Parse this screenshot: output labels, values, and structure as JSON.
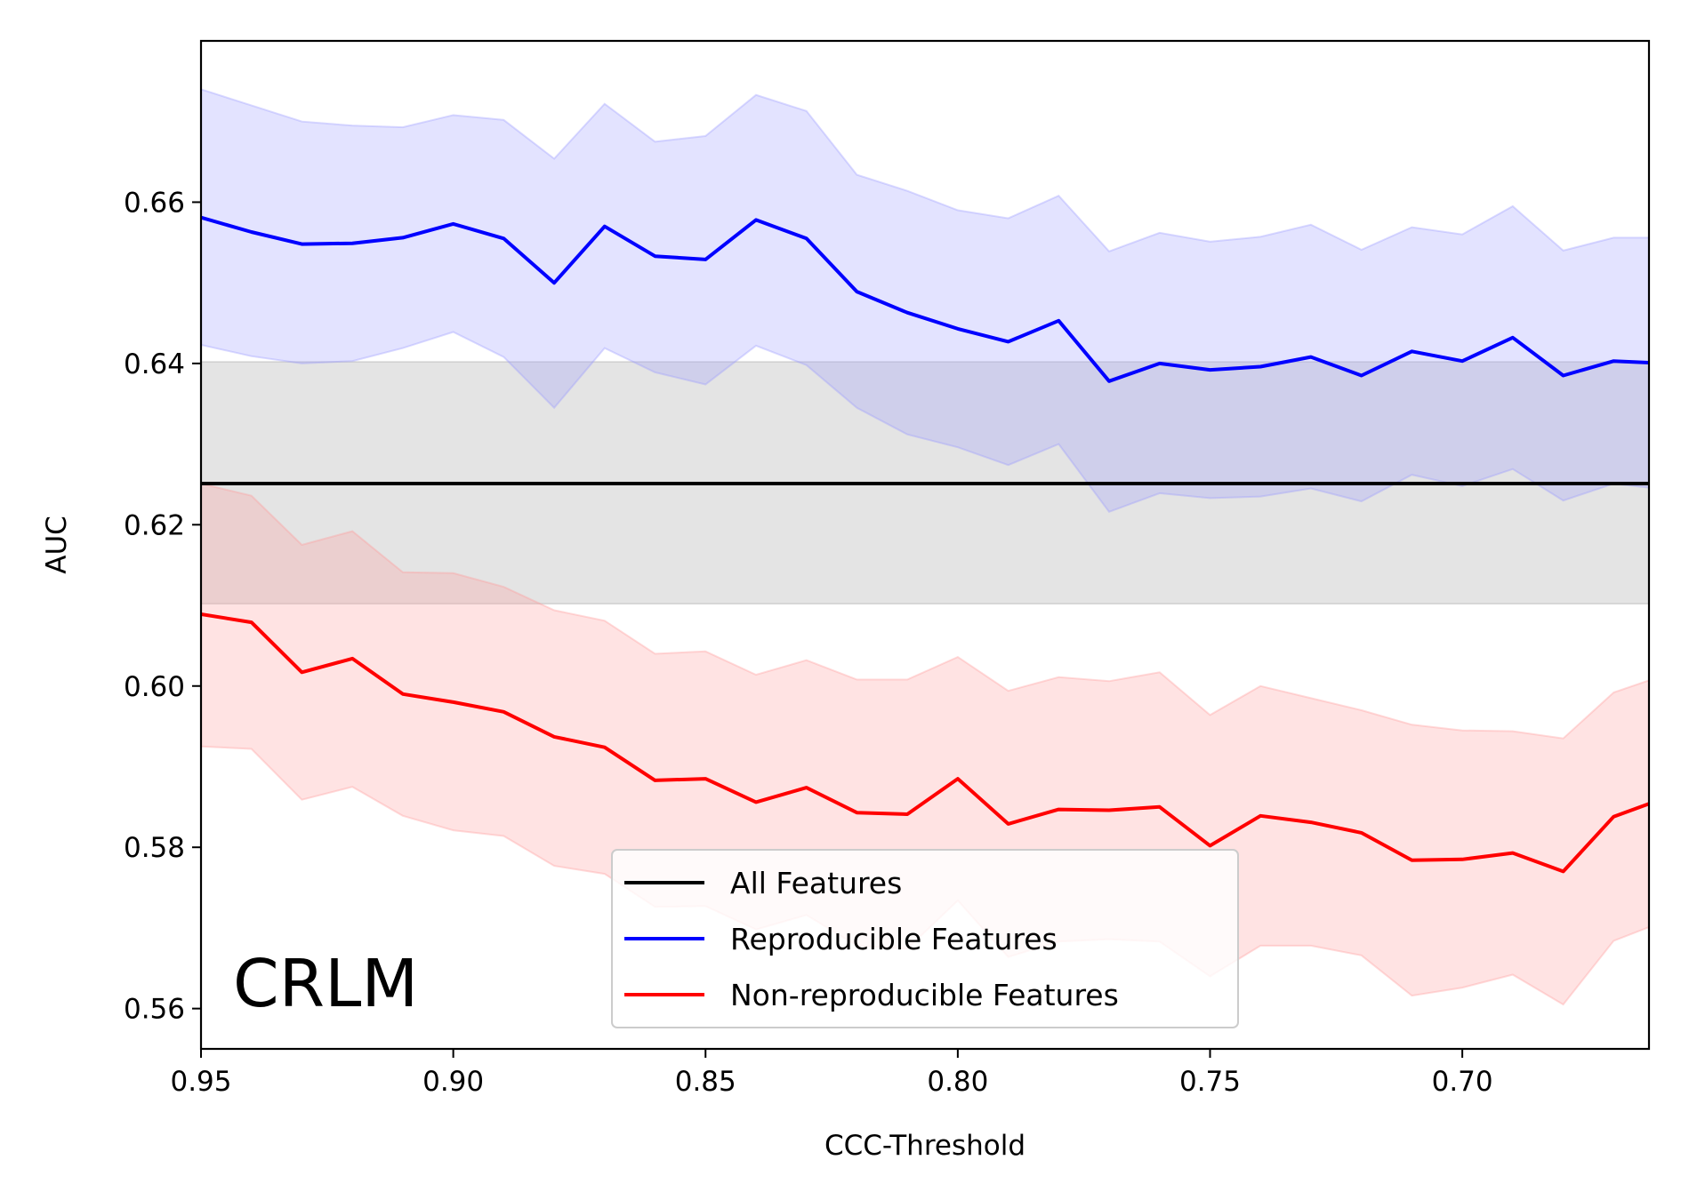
{
  "chart_data": {
    "type": "line",
    "title": "",
    "xlabel": "CCC-Threshold",
    "ylabel": "AUC",
    "annotation": "CRLM",
    "x_inverted": true,
    "xlim": [
      0.95,
      0.663
    ],
    "ylim": [
      0.555,
      0.68
    ],
    "grid": false,
    "legend_position": "lower center",
    "x_ticks": [
      "0.95",
      "0.90",
      "0.85",
      "0.80",
      "0.75",
      "0.70"
    ],
    "y_ticks": [
      "0.56",
      "0.58",
      "0.60",
      "0.62",
      "0.64",
      "0.66"
    ],
    "x": [
      0.95,
      0.94,
      0.93,
      0.92,
      0.91,
      0.9,
      0.89,
      0.88,
      0.87,
      0.86,
      0.85,
      0.84,
      0.83,
      0.82,
      0.81,
      0.8,
      0.79,
      0.78,
      0.77,
      0.76,
      0.75,
      0.74,
      0.73,
      0.72,
      0.71,
      0.7,
      0.69,
      0.68,
      0.67,
      0.663
    ],
    "all_features": {
      "name": "All Features",
      "color": "#000000",
      "value": 0.6251,
      "band": [
        0.6102,
        0.6402
      ],
      "band_color": "#b3b3b3"
    },
    "series": [
      {
        "name": "Reproducible Features",
        "color": "#0000ff",
        "band_color": "#9999ff",
        "values": [
          0.6581,
          0.6563,
          0.6548,
          0.6549,
          0.6556,
          0.6573,
          0.6555,
          0.65,
          0.657,
          0.6533,
          0.6529,
          0.6578,
          0.6555,
          0.6489,
          0.6463,
          0.6443,
          0.6427,
          0.6453,
          0.6378,
          0.64,
          0.6392,
          0.6396,
          0.6408,
          0.6385,
          0.6415,
          0.6403,
          0.6432,
          0.6385,
          0.6403,
          0.6401
        ],
        "upper": [
          0.674,
          0.672,
          0.67,
          0.6695,
          0.6693,
          0.6708,
          0.6702,
          0.6654,
          0.6722,
          0.6675,
          0.6682,
          0.6733,
          0.6713,
          0.6634,
          0.6614,
          0.659,
          0.658,
          0.6608,
          0.6539,
          0.6562,
          0.6551,
          0.6557,
          0.6572,
          0.6541,
          0.6569,
          0.656,
          0.6595,
          0.654,
          0.6556,
          0.6556
        ],
        "lower": [
          0.6423,
          0.6409,
          0.64,
          0.6403,
          0.6419,
          0.6439,
          0.6408,
          0.6345,
          0.6419,
          0.6389,
          0.6374,
          0.6422,
          0.6398,
          0.6345,
          0.6312,
          0.6296,
          0.6274,
          0.63,
          0.6216,
          0.6239,
          0.6233,
          0.6235,
          0.6245,
          0.6229,
          0.6262,
          0.6248,
          0.6269,
          0.623,
          0.6251,
          0.6246
        ]
      },
      {
        "name": "Non-reproducible Features",
        "color": "#ff0000",
        "band_color": "#ff9999",
        "values": [
          0.6089,
          0.6079,
          0.6017,
          0.6034,
          0.599,
          0.598,
          0.5968,
          0.5937,
          0.5924,
          0.5883,
          0.5885,
          0.5856,
          0.5874,
          0.5843,
          0.5841,
          0.5885,
          0.5829,
          0.5847,
          0.5846,
          0.585,
          0.5802,
          0.5839,
          0.5831,
          0.5818,
          0.5784,
          0.5785,
          0.5793,
          0.577,
          0.5838,
          0.5854
        ],
        "upper": [
          0.6251,
          0.6236,
          0.6175,
          0.6192,
          0.6141,
          0.614,
          0.6123,
          0.6094,
          0.6081,
          0.604,
          0.6043,
          0.6014,
          0.6032,
          0.6008,
          0.6008,
          0.6036,
          0.5994,
          0.6011,
          0.6006,
          0.6017,
          0.5964,
          0.6,
          0.5985,
          0.597,
          0.5952,
          0.5945,
          0.5944,
          0.5935,
          0.5992,
          0.6007
        ],
        "lower": [
          0.5925,
          0.5922,
          0.5859,
          0.5875,
          0.5839,
          0.5821,
          0.5814,
          0.5777,
          0.5767,
          0.5726,
          0.5727,
          0.5698,
          0.5716,
          0.5678,
          0.5674,
          0.5734,
          0.5664,
          0.5683,
          0.5686,
          0.5683,
          0.564,
          0.5678,
          0.5678,
          0.5666,
          0.5616,
          0.5626,
          0.5642,
          0.5605,
          0.5684,
          0.5701
        ]
      }
    ]
  }
}
